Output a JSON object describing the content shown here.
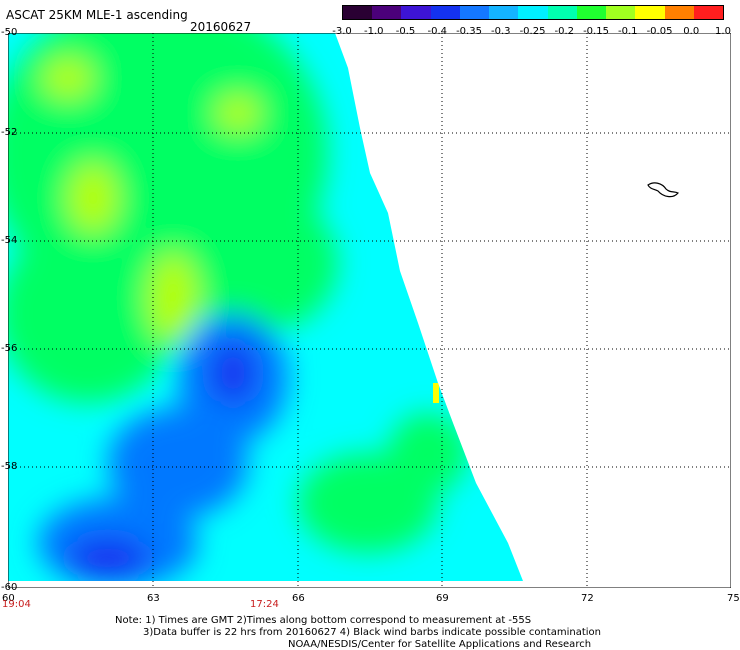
{
  "header": {
    "title": "ASCAT 25KM MLE-1 ascending",
    "date": "20160627"
  },
  "colorbar": {
    "labels": [
      "-3.0",
      "-1.0",
      "-0.5",
      "-0.4",
      "-0.35",
      "-0.3",
      "-0.25",
      "-0.2",
      "-0.15",
      "-0.1",
      "-0.05",
      "0.0",
      "1.0"
    ],
    "colors": [
      "#2a0033",
      "#4b007a",
      "#3d14d6",
      "#1432f0",
      "#1478ff",
      "#14b4ff",
      "#00f0ff",
      "#00ffb0",
      "#20ff30",
      "#a0ff20",
      "#ffff00",
      "#ff8000",
      "#ff1e1e"
    ]
  },
  "map": {
    "lat_labels": [
      "-50",
      "-52",
      "-54",
      "-56",
      "-58",
      "-60"
    ],
    "lon_labels": [
      "60",
      "63",
      "66",
      "69",
      "72",
      "75"
    ],
    "times": [
      "19:04",
      "17:24"
    ],
    "swath_colors": {
      "background": "#00ffff",
      "green": "#00ff64",
      "yellow_green": "#b4ff00",
      "yellow": "#ffff00",
      "blue": "#0078ff",
      "deep_blue": "#1432f0"
    }
  },
  "notes": {
    "line1": "Note: 1) Times are GMT 2)Times along bottom correspond to measurement at -55S",
    "line2": "3)Data buffer is 22 hrs from 20160627 4) Black wind barbs indicate possible contamination",
    "line3": "NOAA/NESDIS/Center for Satellite Applications and Research"
  }
}
